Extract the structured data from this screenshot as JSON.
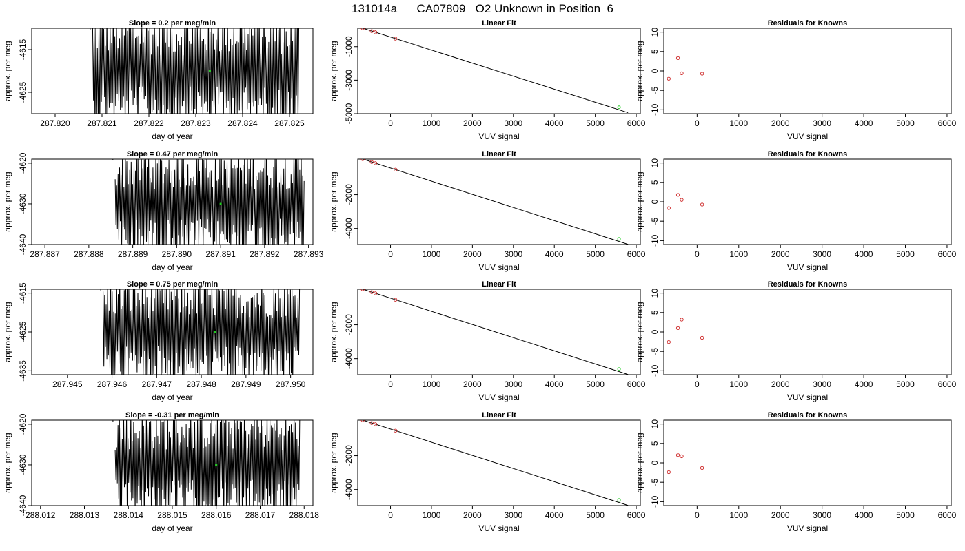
{
  "main_title": "131014a      CA07809   O2 Unknown in Position  6",
  "colors": {
    "known_point": "#cc2222",
    "unknown_point": "#22cc22",
    "trace": "#000000"
  },
  "chart_data": [
    {
      "row": 1,
      "panel": "trace",
      "type": "line",
      "title": "Slope =  0.2  per meg/min",
      "xlabel": "day of year",
      "ylabel": "approx. per meg",
      "xlim": [
        287.8195,
        287.8255
      ],
      "ylim": [
        -4630,
        -4610
      ],
      "x_ticks": [
        "287.820",
        "287.821",
        "287.822",
        "287.823",
        "287.824",
        "287.825"
      ],
      "y_ticks": [
        "-4615",
        "-4625"
      ],
      "y_tick_values": [
        -4615,
        -4625
      ],
      "trace_x_range": [
        287.8208,
        287.8252
      ],
      "trace_center": -4620,
      "trace_amplitude": 12,
      "marker": {
        "x": 287.8233,
        "y": -4620
      }
    },
    {
      "row": 1,
      "panel": "fit",
      "type": "scatter",
      "title": "Linear Fit",
      "xlabel": "VUV signal",
      "ylabel": "approx. per meg",
      "xlim": [
        -800,
        6100
      ],
      "ylim": [
        -5000,
        100
      ],
      "x_ticks": [
        "0",
        "1000",
        "2000",
        "3000",
        "4000",
        "5000",
        "6000"
      ],
      "y_ticks": [
        "-1000",
        "-3000",
        "-5000"
      ],
      "y_tick_values": [
        -1000,
        -3000,
        -5000
      ],
      "line": {
        "x": [
          -700,
          5800
        ],
        "y": [
          120,
          -4940
        ]
      },
      "known_points": {
        "x": [
          -680,
          -460,
          -370,
          120
        ],
        "y": [
          100,
          -70,
          -140,
          -520
        ]
      },
      "unknown_point": {
        "x": 5580,
        "y": -4620
      }
    },
    {
      "row": 1,
      "panel": "residuals",
      "type": "scatter",
      "title": "Residuals for Knowns",
      "xlabel": "VUV signal",
      "ylabel": "approx. per meg",
      "xlim": [
        -800,
        6100
      ],
      "ylim": [
        -11,
        11
      ],
      "x_ticks": [
        "0",
        "1000",
        "2000",
        "3000",
        "4000",
        "5000",
        "6000"
      ],
      "y_ticks": [
        "-10",
        "-5",
        "0",
        "5",
        "10"
      ],
      "y_tick_values": [
        -10,
        -5,
        0,
        5,
        10
      ],
      "points": {
        "x": [
          -680,
          -460,
          -370,
          120
        ],
        "y": [
          -2,
          3.3,
          -0.6,
          -0.7
        ]
      }
    },
    {
      "row": 2,
      "panel": "trace",
      "type": "line",
      "title": "Slope =  0.47  per meg/min",
      "xlabel": "day of year",
      "ylabel": "approx. per meg",
      "xlim": [
        287.8867,
        287.8931
      ],
      "ylim": [
        -4640,
        -4619
      ],
      "x_ticks": [
        "287.887",
        "287.888",
        "287.889",
        "287.890",
        "287.891",
        "287.892",
        "287.893"
      ],
      "y_ticks": [
        "-4620",
        "-4630",
        "-4640"
      ],
      "y_tick_values": [
        -4620,
        -4630,
        -4640
      ],
      "trace_x_range": [
        287.8886,
        287.8929
      ],
      "trace_center": -4630,
      "trace_amplitude": 12,
      "marker": {
        "x": 287.891,
        "y": -4630
      }
    },
    {
      "row": 2,
      "panel": "fit",
      "type": "scatter",
      "title": "Linear Fit",
      "xlabel": "VUV signal",
      "ylabel": "approx. per meg",
      "xlim": [
        -800,
        6100
      ],
      "ylim": [
        -4950,
        100
      ],
      "x_ticks": [
        "0",
        "1000",
        "2000",
        "3000",
        "4000",
        "5000",
        "6000"
      ],
      "y_ticks": [
        "-2000",
        "-4000"
      ],
      "y_tick_values": [
        -2000,
        -4000
      ],
      "line": {
        "x": [
          -700,
          5800
        ],
        "y": [
          120,
          -4940
        ]
      },
      "known_points": {
        "x": [
          -680,
          -460,
          -370,
          120
        ],
        "y": [
          100,
          -70,
          -140,
          -520
        ]
      },
      "unknown_point": {
        "x": 5580,
        "y": -4620
      }
    },
    {
      "row": 2,
      "panel": "residuals",
      "type": "scatter",
      "title": "Residuals for Knowns",
      "xlabel": "VUV signal",
      "ylabel": "approx. per meg",
      "xlim": [
        -800,
        6100
      ],
      "ylim": [
        -11,
        11
      ],
      "x_ticks": [
        "0",
        "1000",
        "2000",
        "3000",
        "4000",
        "5000",
        "6000"
      ],
      "y_ticks": [
        "-10",
        "-5",
        "0",
        "5",
        "10"
      ],
      "y_tick_values": [
        -10,
        -5,
        0,
        5,
        10
      ],
      "points": {
        "x": [
          -680,
          -460,
          -370,
          120
        ],
        "y": [
          -1.6,
          1.8,
          0.5,
          -0.7
        ]
      }
    },
    {
      "row": 3,
      "panel": "trace",
      "type": "line",
      "title": "Slope =  0.75  per meg/min",
      "xlabel": "day of year",
      "ylabel": "approx. per meg",
      "xlim": [
        287.9442,
        287.9505
      ],
      "ylim": [
        -4636,
        -4614
      ],
      "x_ticks": [
        "287.945",
        "287.946",
        "287.947",
        "287.948",
        "287.949",
        "287.950"
      ],
      "y_ticks": [
        "-4615",
        "-4625",
        "-4635"
      ],
      "y_tick_values": [
        -4615,
        -4625,
        -4635
      ],
      "trace_x_range": [
        287.9458,
        287.9502
      ],
      "trace_center": -4625,
      "trace_amplitude": 12,
      "marker": {
        "x": 287.9483,
        "y": -4625
      }
    },
    {
      "row": 3,
      "panel": "fit",
      "type": "scatter",
      "title": "Linear Fit",
      "xlabel": "VUV signal",
      "ylabel": "approx. per meg",
      "xlim": [
        -800,
        6100
      ],
      "ylim": [
        -4950,
        100
      ],
      "x_ticks": [
        "0",
        "1000",
        "2000",
        "3000",
        "4000",
        "5000",
        "6000"
      ],
      "y_ticks": [
        "-2000",
        "-4000"
      ],
      "y_tick_values": [
        -2000,
        -4000
      ],
      "line": {
        "x": [
          -700,
          5800
        ],
        "y": [
          120,
          -4940
        ]
      },
      "known_points": {
        "x": [
          -680,
          -460,
          -370,
          120
        ],
        "y": [
          100,
          -70,
          -140,
          -520
        ]
      },
      "unknown_point": {
        "x": 5580,
        "y": -4620
      }
    },
    {
      "row": 3,
      "panel": "residuals",
      "type": "scatter",
      "title": "Residuals for Knowns",
      "xlabel": "VUV signal",
      "ylabel": "approx. per meg",
      "xlim": [
        -800,
        6100
      ],
      "ylim": [
        -11,
        11
      ],
      "x_ticks": [
        "0",
        "1000",
        "2000",
        "3000",
        "4000",
        "5000",
        "6000"
      ],
      "y_ticks": [
        "-10",
        "-5",
        "0",
        "5",
        "10"
      ],
      "y_tick_values": [
        -10,
        -5,
        0,
        5,
        10
      ],
      "points": {
        "x": [
          -680,
          -460,
          -370,
          120
        ],
        "y": [
          -2.6,
          1.0,
          3.2,
          -1.5
        ]
      }
    },
    {
      "row": 4,
      "panel": "trace",
      "type": "line",
      "title": "Slope =  -0.31  per meg/min",
      "xlabel": "day of year",
      "ylabel": "approx. per meg",
      "xlim": [
        288.0118,
        288.0182
      ],
      "ylim": [
        -4640,
        -4619
      ],
      "x_ticks": [
        "288.012",
        "288.013",
        "288.014",
        "288.015",
        "288.016",
        "288.017",
        "288.018"
      ],
      "y_ticks": [
        "-4620",
        "-4630",
        "-4640"
      ],
      "y_tick_values": [
        -4620,
        -4630,
        -4640
      ],
      "trace_x_range": [
        288.0137,
        288.0179
      ],
      "trace_center": -4630,
      "trace_amplitude": 12,
      "marker": {
        "x": 288.016,
        "y": -4630
      }
    },
    {
      "row": 4,
      "panel": "fit",
      "type": "scatter",
      "title": "Linear Fit",
      "xlabel": "VUV signal",
      "ylabel": "approx. per meg",
      "xlim": [
        -800,
        6100
      ],
      "ylim": [
        -4950,
        100
      ],
      "x_ticks": [
        "0",
        "1000",
        "2000",
        "3000",
        "4000",
        "5000",
        "6000"
      ],
      "y_ticks": [
        "-2000",
        "-4000"
      ],
      "y_tick_values": [
        -2000,
        -4000
      ],
      "line": {
        "x": [
          -700,
          5800
        ],
        "y": [
          120,
          -4940
        ]
      },
      "known_points": {
        "x": [
          -680,
          -460,
          -370,
          120
        ],
        "y": [
          100,
          -70,
          -140,
          -520
        ]
      },
      "unknown_point": {
        "x": 5580,
        "y": -4620
      }
    },
    {
      "row": 4,
      "panel": "residuals",
      "type": "scatter",
      "title": "Residuals for Knowns",
      "xlabel": "VUV signal",
      "ylabel": "approx. per meg",
      "xlim": [
        -800,
        6100
      ],
      "ylim": [
        -11,
        11
      ],
      "x_ticks": [
        "0",
        "1000",
        "2000",
        "3000",
        "4000",
        "5000",
        "6000"
      ],
      "y_ticks": [
        "-10",
        "-5",
        "0",
        "5",
        "10"
      ],
      "y_tick_values": [
        -10,
        -5,
        0,
        5,
        10
      ],
      "points": {
        "x": [
          -680,
          -460,
          -370,
          120
        ],
        "y": [
          -2.4,
          2.0,
          1.7,
          -1.3
        ]
      }
    }
  ]
}
